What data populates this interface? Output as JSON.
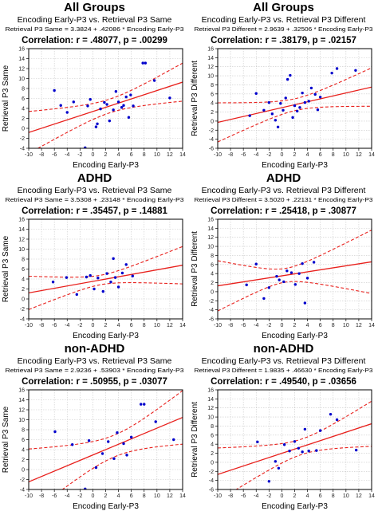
{
  "chart_data": [
    {
      "type": "scatter",
      "title": "All Groups",
      "subtitle": "Encoding Early-P3 vs. Retrieval P3 Same",
      "equation": "Retrieval P3 Same = 3.3824 + .42086 * Encoding Early-P3",
      "correlation": "Correlation: r = .48077, p = .00299",
      "xlabel": "Encoding Early-P3",
      "ylabel": "Retrieval P3 Same",
      "xlim": [
        -10,
        14
      ],
      "ylim": [
        -4,
        16
      ],
      "xticks": [
        -10,
        -8,
        -6,
        -4,
        -2,
        0,
        2,
        4,
        6,
        8,
        10,
        12,
        14
      ],
      "yticks": [
        -4,
        -2,
        0,
        2,
        4,
        6,
        8,
        10,
        12,
        14,
        16
      ],
      "grid": true,
      "intercept": 3.3824,
      "slope": 0.42086,
      "points": [
        [
          -6,
          7.6
        ],
        [
          -5,
          4.6
        ],
        [
          -4,
          3.2
        ],
        [
          -3,
          5.3
        ],
        [
          -1.2,
          -3.9
        ],
        [
          -0.8,
          4.5
        ],
        [
          -0.4,
          5.8
        ],
        [
          0.5,
          0.3
        ],
        [
          0.7,
          0.9
        ],
        [
          1.2,
          3.9
        ],
        [
          1.8,
          5.2
        ],
        [
          2.2,
          4.8
        ],
        [
          2.6,
          1.5
        ],
        [
          3.2,
          3.7
        ],
        [
          3.6,
          7.4
        ],
        [
          4,
          5.3
        ],
        [
          4.5,
          4.2
        ],
        [
          4.8,
          4.6
        ],
        [
          5.2,
          6.3
        ],
        [
          5.6,
          2.2
        ],
        [
          5.9,
          6.7
        ],
        [
          6.3,
          4.5
        ],
        [
          7.8,
          13.1
        ],
        [
          8.2,
          13.1
        ],
        [
          9.6,
          9.6
        ],
        [
          12,
          6.1
        ]
      ]
    },
    {
      "type": "scatter",
      "title": "All Groups",
      "subtitle": "Encoding Early-P3 vs. Retrieval P3 Different",
      "equation": "Retrieval P3 Different = 2.9639 + .32506 * Encoding Early-P3",
      "correlation": "Correlation: r = .38179, p = .02157",
      "xlabel": "Encoding Early-P3",
      "ylabel": "Retrieval P3 Different",
      "xlim": [
        -10,
        14
      ],
      "ylim": [
        -6,
        16
      ],
      "xticks": [
        -10,
        -8,
        -6,
        -4,
        -2,
        0,
        2,
        4,
        6,
        8,
        10,
        12,
        14
      ],
      "yticks": [
        -6,
        -4,
        -2,
        0,
        2,
        4,
        6,
        8,
        10,
        12,
        14,
        16
      ],
      "grid": true,
      "intercept": 2.9639,
      "slope": 0.32506,
      "points": [
        [
          -5,
          1.2
        ],
        [
          -4,
          6.1
        ],
        [
          -2.8,
          2.4
        ],
        [
          -2,
          4.1
        ],
        [
          -1.5,
          1.6
        ],
        [
          -1,
          0.2
        ],
        [
          -0.6,
          -1.3
        ],
        [
          -0.2,
          3.9
        ],
        [
          0.2,
          2.4
        ],
        [
          0.6,
          5.1
        ],
        [
          0.9,
          9.2
        ],
        [
          1.3,
          10.1
        ],
        [
          1.7,
          0.8
        ],
        [
          2,
          3.4
        ],
        [
          2.4,
          2.2
        ],
        [
          2.8,
          3
        ],
        [
          3.2,
          6.2
        ],
        [
          3.6,
          4.1
        ],
        [
          4.2,
          4.4
        ],
        [
          4.6,
          7.3
        ],
        [
          5.2,
          5.9
        ],
        [
          5.6,
          2.5
        ],
        [
          6,
          5.3
        ],
        [
          7.8,
          10.6
        ],
        [
          8.6,
          11.6
        ],
        [
          11.5,
          11.2
        ]
      ]
    },
    {
      "type": "scatter",
      "title": "ADHD",
      "subtitle": "Encoding Early-P3 vs. Retrieval P3 Same",
      "equation": "Retrieval P3 Same = 3.5308 + .23148 * Encoding Early-P3",
      "correlation": "Correlation: r = .35457, p = .14881",
      "xlabel": "Encoding Early-P3",
      "ylabel": "Retrieval P3 Same",
      "xlim": [
        -10,
        14
      ],
      "ylim": [
        -4,
        16
      ],
      "xticks": [
        -10,
        -8,
        -6,
        -4,
        -2,
        0,
        2,
        4,
        6,
        8,
        10,
        12,
        14
      ],
      "yticks": [
        -4,
        -2,
        0,
        2,
        4,
        6,
        8,
        10,
        12,
        14,
        16
      ],
      "grid": true,
      "intercept": 3.5308,
      "slope": 0.23148,
      "points": [
        [
          -6.2,
          3.4
        ],
        [
          -4.1,
          4.3
        ],
        [
          -2.5,
          0.9
        ],
        [
          -1,
          4.4
        ],
        [
          -0.4,
          4.7
        ],
        [
          0.2,
          2
        ],
        [
          0.8,
          4.2
        ],
        [
          1.6,
          1.5
        ],
        [
          2.2,
          5.1
        ],
        [
          2.8,
          3.4
        ],
        [
          3.2,
          8.1
        ],
        [
          3.5,
          4.3
        ],
        [
          4,
          2.4
        ],
        [
          4.6,
          5.2
        ],
        [
          5.2,
          6.9
        ],
        [
          6.2,
          4.6
        ]
      ]
    },
    {
      "type": "scatter",
      "title": "ADHD",
      "subtitle": "Encoding Early-P3 vs. Retrieval P3 Different",
      "equation": "Retrieval P3 Different = 3.5020 + .22131 * Encoding Early-P3",
      "correlation": "Correlation: r = .25418, p = .30877",
      "xlabel": "Encoding Early-P3",
      "ylabel": "Retrieval P3 Different",
      "xlim": [
        -10,
        14
      ],
      "ylim": [
        -6,
        16
      ],
      "xticks": [
        -10,
        -8,
        -6,
        -4,
        -2,
        0,
        2,
        4,
        6,
        8,
        10,
        12,
        14
      ],
      "yticks": [
        -6,
        -4,
        -2,
        0,
        2,
        4,
        6,
        8,
        10,
        12,
        14,
        16
      ],
      "grid": true,
      "intercept": 3.502,
      "slope": 0.22131,
      "points": [
        [
          -5.5,
          1.5
        ],
        [
          -4,
          6.1
        ],
        [
          -2.8,
          -1.5
        ],
        [
          -2,
          0.9
        ],
        [
          -0.8,
          3.4
        ],
        [
          -0.4,
          2.6
        ],
        [
          0.3,
          2.2
        ],
        [
          0.8,
          4.6
        ],
        [
          1.5,
          4.2
        ],
        [
          2.1,
          1.6
        ],
        [
          2.7,
          4
        ],
        [
          3.2,
          6.2
        ],
        [
          3.6,
          -2.5
        ],
        [
          4,
          3
        ],
        [
          5,
          6.5
        ]
      ]
    },
    {
      "type": "scatter",
      "title": "non-ADHD",
      "subtitle": "Encoding Early-P3 vs. Retrieval P3 Same",
      "equation": "Retrieval P3 Same = 2.9236 + .53903 * Encoding Early-P3",
      "correlation": "Correlation: r = .50955, p = .03077",
      "xlabel": "Encoding Early-P3",
      "ylabel": "Retrieval P3 Same",
      "xlim": [
        -10,
        14
      ],
      "ylim": [
        -4,
        16
      ],
      "xticks": [
        -10,
        -8,
        -6,
        -4,
        -2,
        0,
        2,
        4,
        6,
        8,
        10,
        12,
        14
      ],
      "yticks": [
        -4,
        -2,
        0,
        2,
        4,
        6,
        8,
        10,
        12,
        14,
        16
      ],
      "grid": true,
      "intercept": 2.9236,
      "slope": 0.53903,
      "points": [
        [
          -5.9,
          7.6
        ],
        [
          -3.2,
          5
        ],
        [
          -1.2,
          -3.9
        ],
        [
          -0.6,
          5.8
        ],
        [
          0.5,
          0.4
        ],
        [
          1.5,
          3.2
        ],
        [
          2.4,
          5.6
        ],
        [
          3.3,
          2.2
        ],
        [
          3.8,
          7.4
        ],
        [
          4.8,
          5.2
        ],
        [
          5.3,
          2.9
        ],
        [
          6,
          6.5
        ],
        [
          7.5,
          13.1
        ],
        [
          8,
          13.1
        ],
        [
          9.8,
          9.6
        ],
        [
          12.6,
          6
        ]
      ]
    },
    {
      "type": "scatter",
      "title": "non-ADHD",
      "subtitle": "Encoding Early-P3 vs. Retrieval P3 Different",
      "equation": "Retrieval P3 Different = 1.9835 + .46630 * Encoding Early-P3",
      "correlation": "Correlation: r = .49540, p = .03656",
      "xlabel": "Encoding Early-P3",
      "ylabel": "Retrieval P3 Different",
      "xlim": [
        -10,
        14
      ],
      "ylim": [
        -6,
        16
      ],
      "xticks": [
        -10,
        -8,
        -6,
        -4,
        -2,
        0,
        2,
        4,
        6,
        8,
        10,
        12,
        14
      ],
      "yticks": [
        -6,
        -4,
        -2,
        0,
        2,
        4,
        6,
        8,
        10,
        12,
        14,
        16
      ],
      "grid": true,
      "intercept": 1.9835,
      "slope": 0.4663,
      "points": [
        [
          -3.8,
          4.5
        ],
        [
          -2,
          -4.2
        ],
        [
          -1,
          0.2
        ],
        [
          -0.5,
          -1.3
        ],
        [
          0.4,
          3.9
        ],
        [
          1.2,
          2.5
        ],
        [
          2,
          4.6
        ],
        [
          2.6,
          3.1
        ],
        [
          3.2,
          2.3
        ],
        [
          3.6,
          7.3
        ],
        [
          4.2,
          2.5
        ],
        [
          5.4,
          2.6
        ],
        [
          6,
          7
        ],
        [
          7.6,
          10.6
        ],
        [
          8.6,
          9.4
        ],
        [
          11.6,
          2.7
        ]
      ]
    }
  ],
  "colors": {
    "point": "#0000cc",
    "fit_line": "#e8201c",
    "confidence_band": "#e8201c",
    "grid": "#c8c8c8",
    "frame": "#000000"
  }
}
